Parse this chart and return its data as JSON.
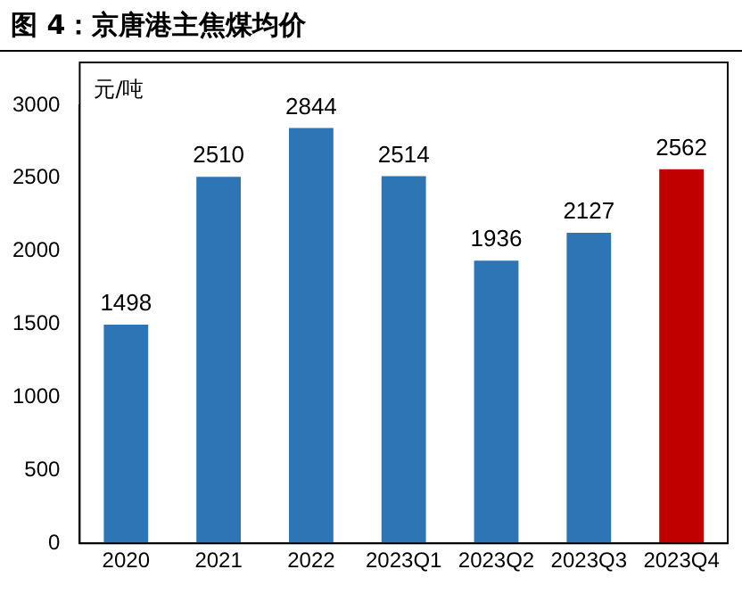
{
  "chart_data": {
    "type": "bar",
    "title": "图 4：京唐港主焦煤均价",
    "ylabel": "元/吨",
    "categories": [
      "2020",
      "2021",
      "2022",
      "2023Q1",
      "2023Q2",
      "2023Q3",
      "2023Q4"
    ],
    "values": [
      1498,
      2510,
      2844,
      2514,
      1936,
      2127,
      2562
    ],
    "colors": [
      "#2e75b6",
      "#2e75b6",
      "#2e75b6",
      "#2e75b6",
      "#2e75b6",
      "#2e75b6",
      "#c00000"
    ],
    "ylim": [
      0,
      3000
    ],
    "yticks": [
      0,
      500,
      1000,
      1500,
      2000,
      2500,
      3000
    ],
    "grid": false,
    "legend": false,
    "data_labels": true
  }
}
